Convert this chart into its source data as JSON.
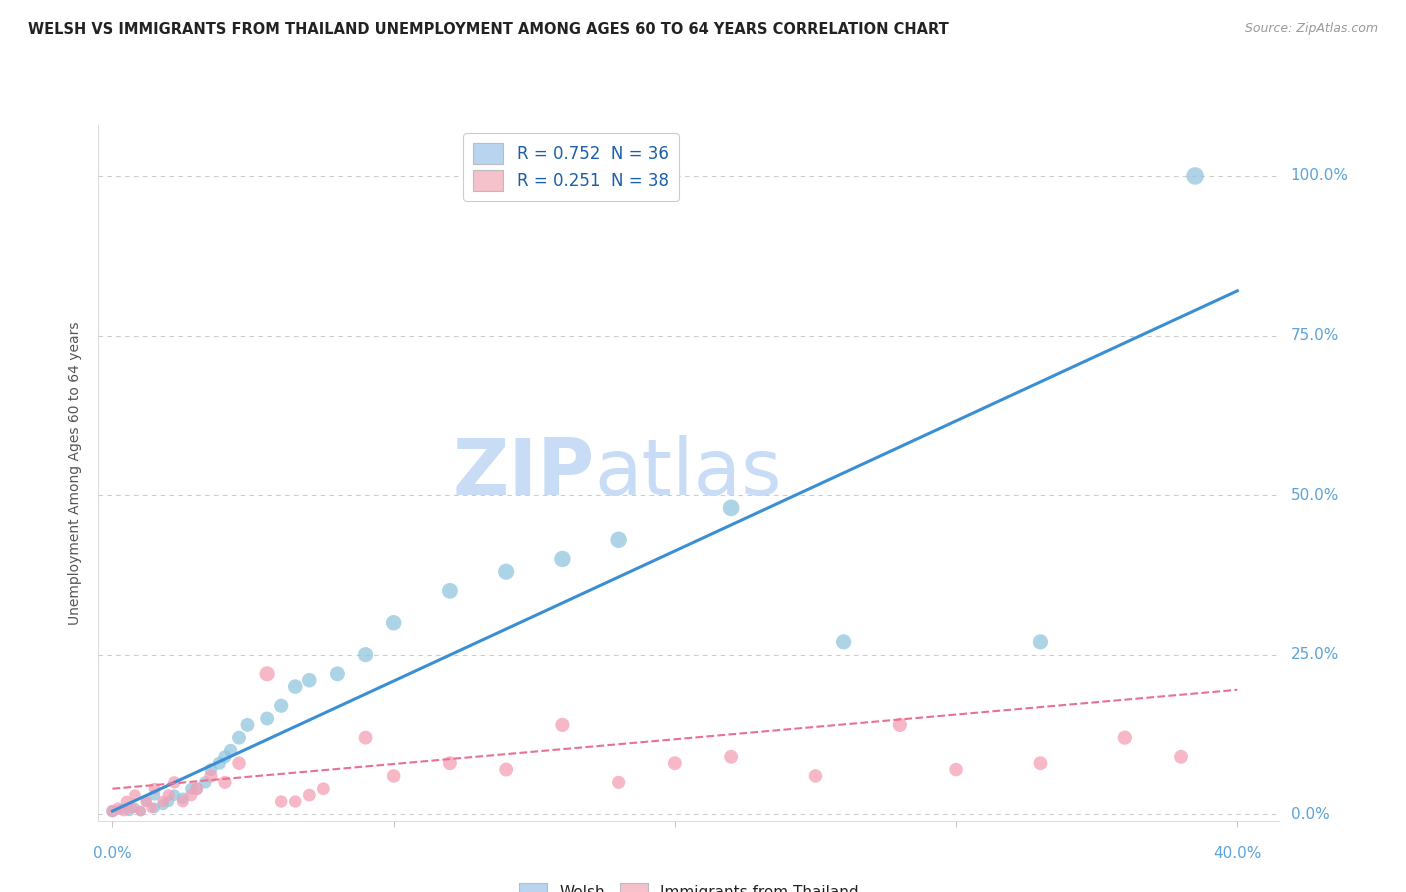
{
  "title": "WELSH VS IMMIGRANTS FROM THAILAND UNEMPLOYMENT AMONG AGES 60 TO 64 YEARS CORRELATION CHART",
  "source": "Source: ZipAtlas.com",
  "ylabel": "Unemployment Among Ages 60 to 64 years",
  "ytick_labels": [
    "0.0%",
    "25.0%",
    "50.0%",
    "75.0%",
    "100.0%"
  ],
  "ytick_values": [
    0.0,
    0.25,
    0.5,
    0.75,
    1.0
  ],
  "xtick_labels": [
    "0.0%",
    "40.0%"
  ],
  "xtick_values": [
    0.0,
    0.4
  ],
  "xlim": [
    -0.005,
    0.415
  ],
  "ylim": [
    -0.01,
    1.08
  ],
  "legend1_label": "R = 0.752  N = 36",
  "legend2_label": "R = 0.251  N = 38",
  "legend_welsh_color": "#b8d4ee",
  "legend_thai_color": "#f5c2cc",
  "watermark_zip": "ZIP",
  "watermark_atlas": "atlas",
  "watermark_color": "#c8ddf5",
  "background_color": "#ffffff",
  "grid_color": "#cccccc",
  "tick_color": "#5ba3d9",
  "welsh_scatter_x": [
    0.0,
    0.003,
    0.006,
    0.008,
    0.01,
    0.012,
    0.015,
    0.015,
    0.018,
    0.02,
    0.022,
    0.025,
    0.028,
    0.03,
    0.033,
    0.035,
    0.038,
    0.04,
    0.042,
    0.045,
    0.048,
    0.055,
    0.06,
    0.065,
    0.07,
    0.08,
    0.09,
    0.1,
    0.12,
    0.14,
    0.16,
    0.18,
    0.22,
    0.26,
    0.33,
    0.385
  ],
  "welsh_scatter_y": [
    0.005,
    0.008,
    0.005,
    0.01,
    0.005,
    0.02,
    0.01,
    0.03,
    0.015,
    0.02,
    0.03,
    0.025,
    0.04,
    0.04,
    0.05,
    0.07,
    0.08,
    0.09,
    0.1,
    0.12,
    0.14,
    0.15,
    0.17,
    0.2,
    0.21,
    0.22,
    0.25,
    0.3,
    0.35,
    0.38,
    0.4,
    0.43,
    0.48,
    0.27,
    0.27,
    1.0
  ],
  "welsh_scatter_color": "#92c5de",
  "welsh_scatter_alpha": 0.75,
  "welsh_scatter_sizes": [
    80,
    60,
    55,
    55,
    55,
    60,
    60,
    65,
    65,
    65,
    70,
    70,
    75,
    80,
    80,
    85,
    90,
    90,
    90,
    100,
    100,
    100,
    105,
    110,
    110,
    115,
    120,
    125,
    130,
    135,
    140,
    140,
    145,
    120,
    120,
    160
  ],
  "thai_scatter_x": [
    0.0,
    0.002,
    0.004,
    0.005,
    0.007,
    0.008,
    0.01,
    0.012,
    0.014,
    0.015,
    0.018,
    0.02,
    0.022,
    0.025,
    0.028,
    0.03,
    0.035,
    0.04,
    0.045,
    0.055,
    0.06,
    0.065,
    0.07,
    0.075,
    0.09,
    0.1,
    0.12,
    0.14,
    0.16,
    0.18,
    0.2,
    0.22,
    0.25,
    0.28,
    0.3,
    0.33,
    0.36,
    0.38
  ],
  "thai_scatter_y": [
    0.005,
    0.01,
    0.005,
    0.02,
    0.01,
    0.03,
    0.005,
    0.02,
    0.01,
    0.04,
    0.02,
    0.03,
    0.05,
    0.02,
    0.03,
    0.04,
    0.06,
    0.05,
    0.08,
    0.22,
    0.02,
    0.02,
    0.03,
    0.04,
    0.12,
    0.06,
    0.08,
    0.07,
    0.14,
    0.05,
    0.08,
    0.09,
    0.06,
    0.14,
    0.07,
    0.08,
    0.12,
    0.09
  ],
  "thai_scatter_color": "#f4a0b5",
  "thai_scatter_alpha": 0.75,
  "thai_scatter_sizes": [
    80,
    65,
    60,
    70,
    65,
    70,
    60,
    70,
    65,
    75,
    70,
    75,
    80,
    75,
    80,
    85,
    90,
    90,
    95,
    120,
    80,
    80,
    85,
    85,
    100,
    95,
    100,
    100,
    105,
    90,
    100,
    100,
    95,
    105,
    95,
    100,
    105,
    100
  ],
  "welsh_trend_x": [
    0.0,
    0.4
  ],
  "welsh_trend_y": [
    0.005,
    0.82
  ],
  "welsh_trend_color": "#3a8fd4",
  "welsh_trend_linewidth": 2.2,
  "thai_trend_x": [
    0.0,
    0.4
  ],
  "thai_trend_y": [
    0.04,
    0.195
  ],
  "thai_trend_color": "#e87090",
  "thai_trend_linewidth": 1.5,
  "thai_trend_linestyle": "--"
}
